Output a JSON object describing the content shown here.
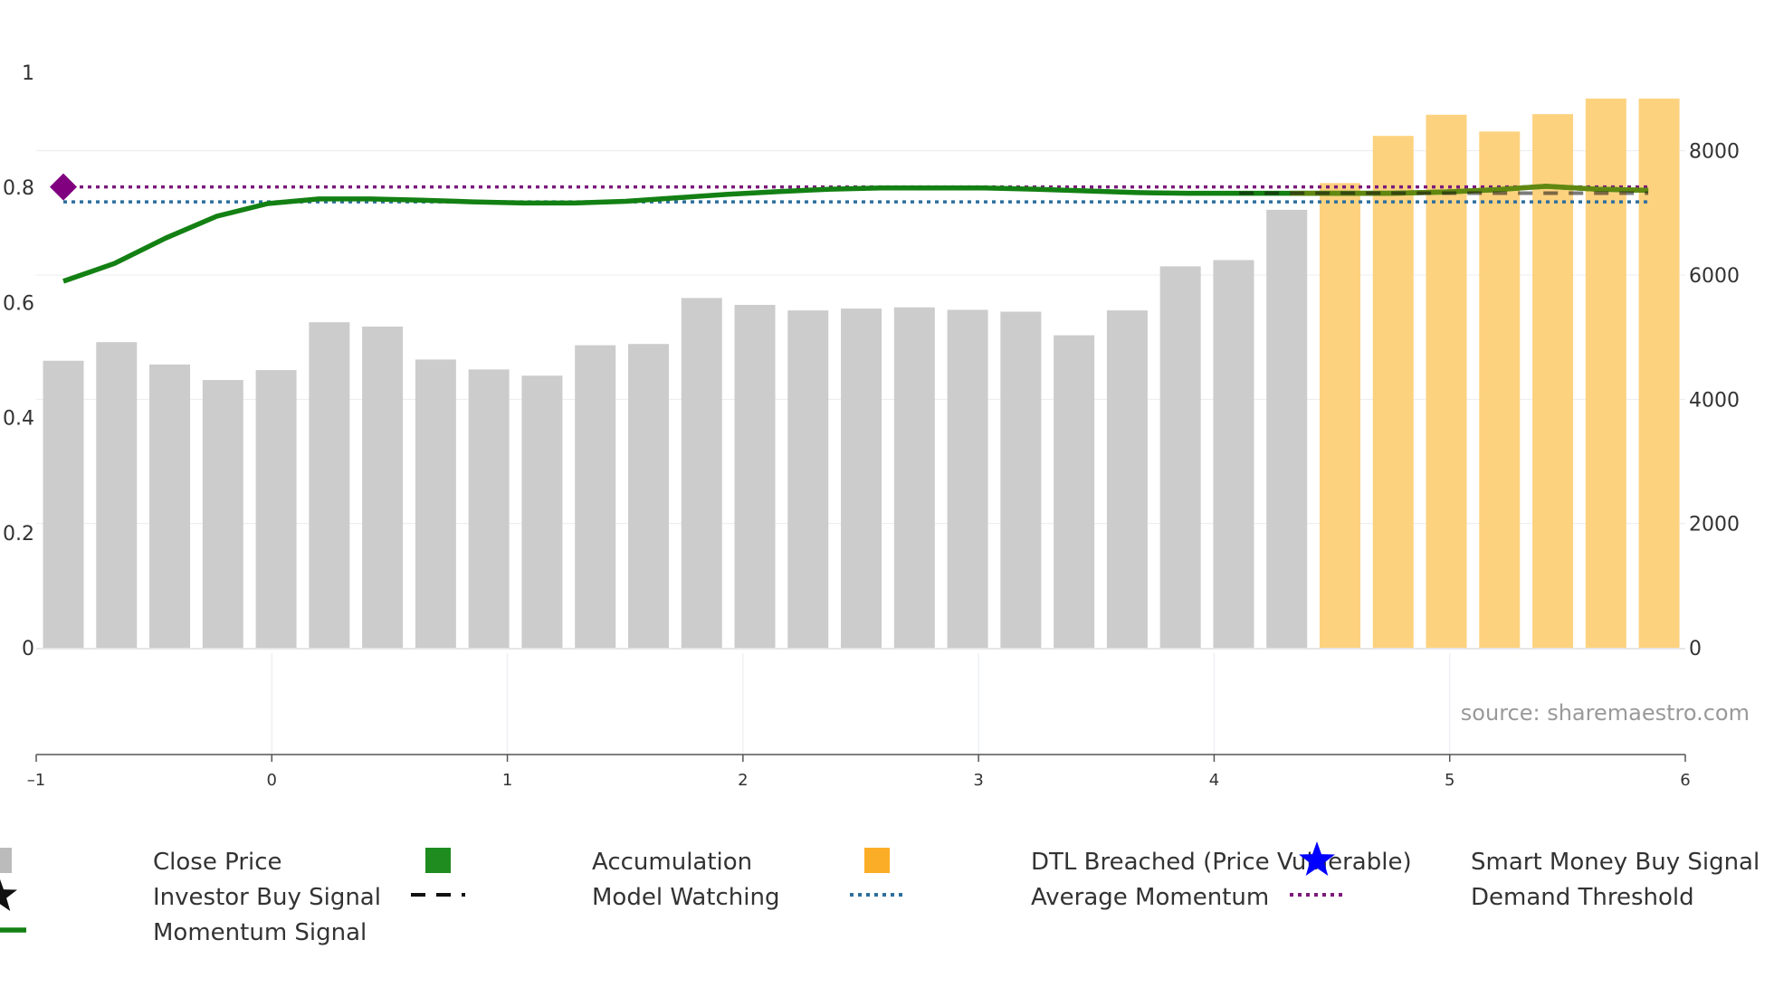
{
  "chart_data": {
    "type": "bar",
    "source": "source: sharemaestro.com",
    "x_axis": {
      "range": [
        -1,
        6
      ],
      "ticks": [
        "–1",
        "0",
        "1",
        "2",
        "3",
        "4",
        "5",
        "6"
      ],
      "tick_values": [
        -1,
        0,
        1,
        2,
        3,
        4,
        5,
        6
      ]
    },
    "left_axis": {
      "range": [
        0,
        1
      ],
      "ticks": [
        "0",
        "0.2",
        "0.4",
        "0.6",
        "0.8",
        "1"
      ],
      "tick_values": [
        0,
        0.2,
        0.4,
        0.6,
        0.8,
        1
      ]
    },
    "right_axis": {
      "range": [
        0,
        9262
      ],
      "ticks": [
        "0",
        "2000",
        "4000",
        "6000",
        "8000"
      ],
      "tick_values": [
        0,
        2000,
        4000,
        6000,
        8000
      ]
    },
    "bars": {
      "names": [
        "Close Price",
        "DTL Breached (Price Vulnerable)"
      ],
      "colors": [
        "#cccccc",
        "#fdd27f"
      ],
      "values": [
        4620,
        4920,
        4560,
        4310,
        4470,
        5240,
        5170,
        4640,
        4480,
        4380,
        4870,
        4890,
        5630,
        5520,
        5430,
        5460,
        5480,
        5440,
        5410,
        5030,
        5430,
        6140,
        6240,
        7050,
        7480,
        8240,
        8580,
        8310,
        8590,
        8840,
        8840
      ],
      "category": [
        0,
        0,
        0,
        0,
        0,
        0,
        0,
        0,
        0,
        0,
        0,
        0,
        0,
        0,
        0,
        0,
        0,
        0,
        0,
        0,
        0,
        0,
        0,
        0,
        1,
        1,
        1,
        1,
        1,
        1,
        1
      ]
    },
    "momentum": {
      "name": "Momentum Signal",
      "color": "#138013",
      "values": [
        0.637,
        0.668,
        0.712,
        0.75,
        0.772,
        0.78,
        0.78,
        0.778,
        0.775,
        0.773,
        0.773,
        0.776,
        0.782,
        0.788,
        0.793,
        0.797,
        0.799,
        0.799,
        0.799,
        0.797,
        0.794,
        0.791,
        0.79,
        0.79,
        0.79,
        0.79,
        0.79,
        0.792,
        0.796,
        0.802,
        0.797,
        0.795
      ],
      "overlay_color": "#6e8a12",
      "overlay_start_index": 24
    },
    "model_watching": {
      "name": "Model Watching",
      "color": "#111111",
      "value": 0.79,
      "start_index": 23,
      "end_index": 31
    },
    "average_momentum": {
      "name": "Average Momentum",
      "color": "#2e6f9e",
      "value": 0.775
    },
    "demand_threshold": {
      "name": "Demand Threshold",
      "color": "#7b1a7b",
      "value": 0.801
    },
    "markers": [
      {
        "name": "Demand Threshold Marker",
        "index": 0,
        "value": 0.801,
        "color": "#800080"
      }
    ],
    "legend": [
      {
        "label": "Close Price",
        "symbol": "square",
        "color": "#bbbbbb"
      },
      {
        "label": "Accumulation",
        "symbol": "square",
        "color": "#1f8c1f"
      },
      {
        "label": "DTL Breached (Price Vulnerable)",
        "symbol": "square",
        "color": "#fcad28"
      },
      {
        "label": "Smart Money Buy Signal",
        "symbol": "star",
        "color": "#0000ff"
      },
      {
        "label": "Investor Buy Signal",
        "symbol": "star",
        "color": "#111111"
      },
      {
        "label": "Model Watching",
        "symbol": "dash",
        "color": "#111111"
      },
      {
        "label": "Average Momentum",
        "symbol": "dot",
        "color": "#2e6f9e"
      },
      {
        "label": "Demand Threshold",
        "symbol": "dot",
        "color": "#7b1a7b"
      },
      {
        "label": "Momentum Signal",
        "symbol": "line",
        "color": "#138013"
      }
    ]
  }
}
